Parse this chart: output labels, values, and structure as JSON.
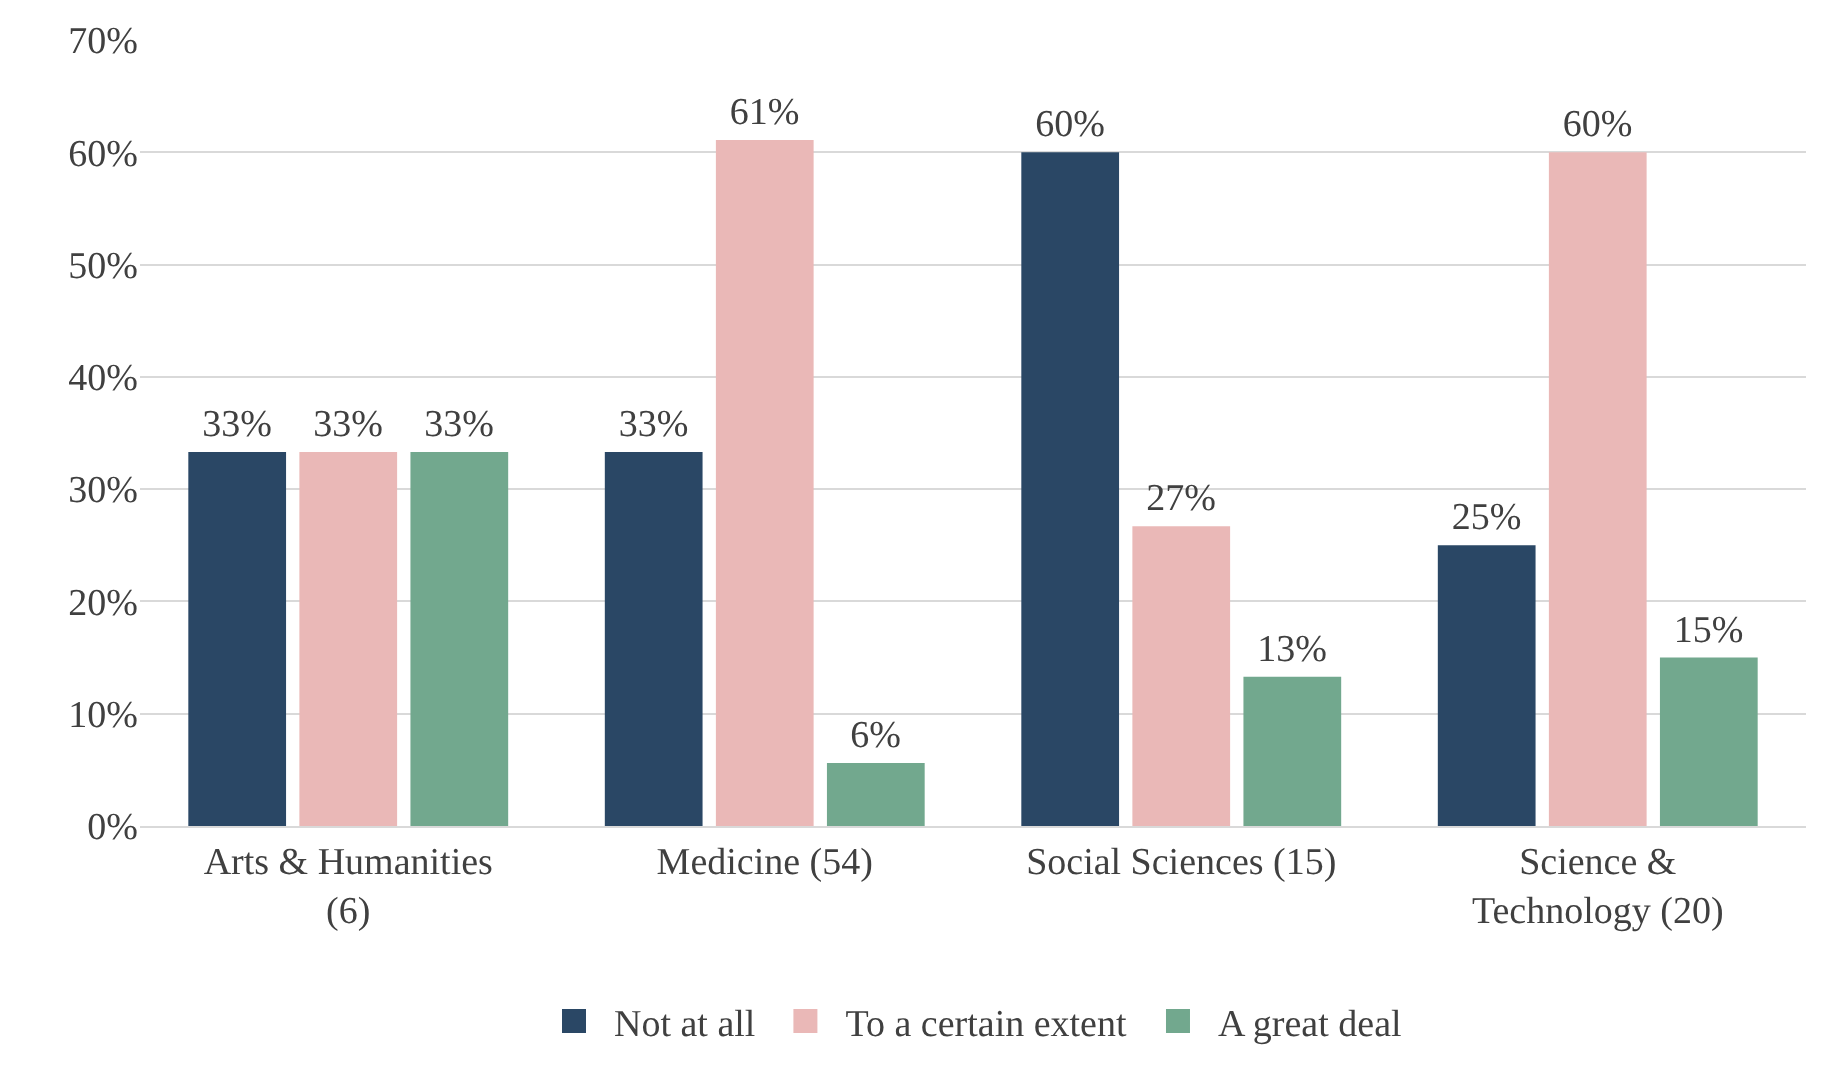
{
  "chart_data": {
    "type": "bar",
    "categories": [
      "Arts & Humanities\n(6)",
      "Medicine (54)",
      "Social Sciences (15)",
      "Science &\nTechnology (20)"
    ],
    "series": [
      {
        "name": "Not at all",
        "color": "#2a4765",
        "values": [
          33.3,
          33.3,
          60,
          25
        ],
        "value_labels": [
          "33%",
          "33%",
          "60%",
          "25%"
        ]
      },
      {
        "name": "To a certain extent",
        "color": "#eab8b7",
        "values": [
          33.3,
          61.1,
          26.7,
          60
        ],
        "value_labels": [
          "33%",
          "61%",
          "27%",
          "60%"
        ]
      },
      {
        "name": "A great deal",
        "color": "#72a88e",
        "values": [
          33.3,
          5.6,
          13.3,
          15
        ],
        "value_labels": [
          "33%",
          "6%",
          "13%",
          "15%"
        ]
      }
    ],
    "ylim": [
      0,
      70
    ],
    "yticks": [
      {
        "value": 0,
        "label": "0%"
      },
      {
        "value": 10,
        "label": "10%"
      },
      {
        "value": 20,
        "label": "20%"
      },
      {
        "value": 30,
        "label": "30%"
      },
      {
        "value": 40,
        "label": "40%"
      },
      {
        "value": 50,
        "label": "50%"
      },
      {
        "value": 60,
        "label": "60%"
      },
      {
        "value": 70,
        "label": "70%"
      }
    ],
    "grid": "y",
    "legend": "bottom"
  }
}
